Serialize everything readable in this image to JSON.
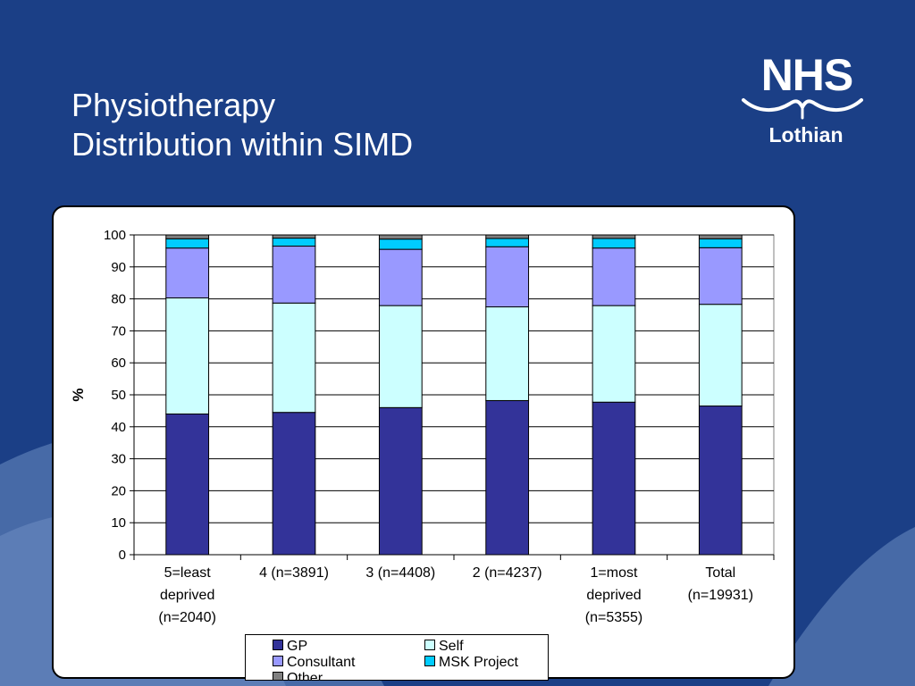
{
  "slide": {
    "title_line1": "Physiotherapy",
    "title_line2": "Distribution within SIMD",
    "logo": {
      "brand": "NHS",
      "region": "Lothian"
    }
  },
  "colors": {
    "background": "#1b3f86",
    "GP": "#333399",
    "Self": "#ccffff",
    "Consultant": "#9999ff",
    "MSK Project": "#00ccff",
    "Other": "#808080"
  },
  "chart_data": {
    "type": "bar",
    "stacked": true,
    "ylabel": "%",
    "xlabel": "",
    "ylim": [
      0,
      100
    ],
    "yticks": [
      0,
      10,
      20,
      30,
      40,
      50,
      60,
      70,
      80,
      90,
      100
    ],
    "grid": true,
    "legend_position": "bottom",
    "categories": [
      [
        "5=least",
        "deprived",
        "(n=2040)"
      ],
      [
        "4 (n=3891)"
      ],
      [
        "3 (n=4408)"
      ],
      [
        "2 (n=4237)"
      ],
      [
        "1=most",
        "deprived",
        "(n=5355)"
      ],
      [
        "Total",
        "(n=19931)"
      ]
    ],
    "series": [
      {
        "name": "GP",
        "values": [
          44.0,
          44.5,
          46.0,
          48.2,
          47.7,
          46.5
        ]
      },
      {
        "name": "Self",
        "values": [
          36.3,
          34.2,
          31.9,
          29.3,
          30.2,
          31.8
        ]
      },
      {
        "name": "Consultant",
        "values": [
          15.6,
          17.8,
          17.6,
          18.8,
          18.0,
          17.7
        ]
      },
      {
        "name": "MSK Project",
        "values": [
          2.9,
          2.5,
          3.2,
          2.6,
          3.0,
          2.8
        ]
      },
      {
        "name": "Other",
        "values": [
          1.2,
          1.0,
          1.3,
          1.1,
          1.1,
          1.2
        ]
      }
    ]
  },
  "legend": [
    {
      "label": "GP",
      "color": "#333399"
    },
    {
      "label": "Self",
      "color": "#ccffff"
    },
    {
      "label": "Consultant",
      "color": "#9999ff"
    },
    {
      "label": "MSK Project",
      "color": "#00ccff"
    },
    {
      "label": "Other",
      "color": "#808080"
    }
  ]
}
